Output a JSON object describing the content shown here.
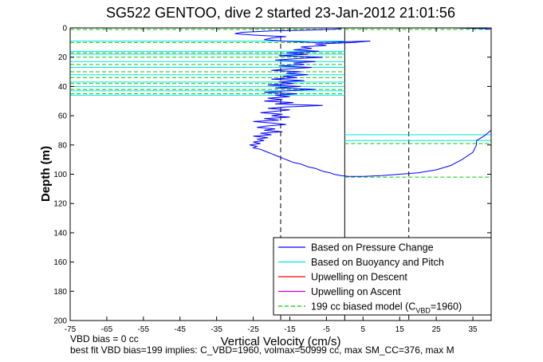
{
  "chart_data": {
    "type": "line",
    "title": "SG522 GENTOO, dive 2 started 23-Jan-2012 21:01:56",
    "xlabel": "Vertical Velocity (cm/s)",
    "ylabel": "Depth (m)",
    "xlim": [
      -75,
      40
    ],
    "ylim": [
      200,
      0
    ],
    "y_reversed": true,
    "grid": false,
    "legend_position": "bottom-right",
    "xticks": [
      "-75",
      "-65",
      "-55",
      "-45",
      "-35",
      "-25",
      "-15",
      "-5",
      "5",
      "15",
      "25",
      "35"
    ],
    "xtick_values": [
      -75,
      -65,
      -55,
      -45,
      -35,
      -25,
      -15,
      -5,
      5,
      15,
      25,
      35
    ],
    "yticks": [
      "0",
      "20",
      "40",
      "60",
      "80",
      "100",
      "120",
      "140",
      "160",
      "180",
      "200"
    ],
    "ytick_values": [
      0,
      20,
      40,
      60,
      80,
      100,
      120,
      140,
      160,
      180,
      200
    ],
    "reference_lines_x": [
      0
    ],
    "reference_lines_x_dashed": [
      -17.5,
      17.5
    ],
    "notes": [
      "VBD bias = 0 cc",
      "best fit VBD bias=199 implies: C_VBD=1960, volmax=50999 cc, max SM_CC=376, max M"
    ],
    "legend": [
      {
        "label": "Based on Pressure Change",
        "color": "#0000ff",
        "style": "solid"
      },
      {
        "label": "Based on Buoyancy and Pitch",
        "color": "#00e6e6",
        "style": "solid"
      },
      {
        "label": "Upwelling on Descent",
        "color": "#ff0000",
        "style": "solid"
      },
      {
        "label": "Upwelling on Ascent",
        "color": "#cc00cc",
        "style": "solid"
      },
      {
        "label_prefix": "199 cc biased model (C",
        "label_sub": "VBD",
        "label_suffix": "=1960)",
        "color": "#00cc00",
        "style": "dashed"
      }
    ],
    "series": [
      {
        "name": "Based on Pressure Change",
        "color": "#0000ff",
        "points": [
          [
            -1,
            0.5
          ],
          [
            -3,
            1
          ],
          [
            -10,
            1.5
          ],
          [
            -20,
            2
          ],
          [
            -28,
            3
          ],
          [
            -30,
            4
          ],
          [
            -24,
            5
          ],
          [
            -16,
            6
          ],
          [
            -20,
            7
          ],
          [
            -22,
            8
          ],
          [
            -17,
            9
          ],
          [
            -8,
            10
          ],
          [
            7,
            9
          ],
          [
            2,
            10
          ],
          [
            -8,
            11
          ],
          [
            -5,
            12
          ],
          [
            -12,
            13
          ],
          [
            -9,
            14
          ],
          [
            -14,
            15
          ],
          [
            -7,
            16
          ],
          [
            -16,
            17
          ],
          [
            -10,
            18
          ],
          [
            -18,
            19
          ],
          [
            -6,
            20
          ],
          [
            -13,
            21
          ],
          [
            -19,
            22
          ],
          [
            -8,
            23
          ],
          [
            -14,
            24
          ],
          [
            -11,
            25
          ],
          [
            -18,
            26
          ],
          [
            -9,
            27
          ],
          [
            -15,
            28
          ],
          [
            -20,
            29
          ],
          [
            -12,
            30
          ],
          [
            -16,
            31
          ],
          [
            -10,
            32
          ],
          [
            -17,
            33
          ],
          [
            -13,
            34
          ],
          [
            -20,
            35
          ],
          [
            -11,
            36
          ],
          [
            -18,
            37
          ],
          [
            -14,
            38
          ],
          [
            -21,
            39
          ],
          [
            -12,
            40
          ],
          [
            -19,
            41
          ],
          [
            -8,
            42
          ],
          [
            -16,
            43
          ],
          [
            -22,
            44
          ],
          [
            -13,
            45
          ],
          [
            -19,
            46
          ],
          [
            -15,
            47
          ],
          [
            -21,
            48
          ],
          [
            -17,
            49
          ],
          [
            -22,
            50
          ],
          [
            -14,
            51
          ],
          [
            -19,
            52
          ],
          [
            -6,
            53
          ],
          [
            -16,
            54
          ],
          [
            -21,
            55
          ],
          [
            -15,
            56
          ],
          [
            -19,
            57
          ],
          [
            -23,
            58
          ],
          [
            -17,
            59
          ],
          [
            -20,
            60
          ],
          [
            -15,
            61
          ],
          [
            -22,
            62
          ],
          [
            -18,
            63
          ],
          [
            -25,
            64
          ],
          [
            -20,
            65
          ],
          [
            -16,
            66
          ],
          [
            -21,
            67
          ],
          [
            -24,
            68
          ],
          [
            -19,
            69
          ],
          [
            -22,
            70
          ],
          [
            -17,
            71
          ],
          [
            -23,
            72
          ],
          [
            -20,
            73
          ],
          [
            -25,
            74
          ],
          [
            -21,
            75
          ],
          [
            -24,
            76
          ],
          [
            -22,
            77
          ],
          [
            -25,
            78
          ],
          [
            -23,
            79
          ],
          [
            -26,
            80
          ],
          [
            -24,
            81
          ],
          [
            -25,
            82
          ],
          [
            -23,
            83
          ],
          [
            -22,
            84
          ],
          [
            -21,
            85
          ],
          [
            -20,
            86
          ],
          [
            -19,
            87
          ],
          [
            -18,
            88
          ],
          [
            -17,
            89
          ],
          [
            -16,
            90
          ],
          [
            -15,
            91
          ],
          [
            -14,
            92
          ],
          [
            -12,
            93
          ],
          [
            -11,
            94
          ],
          [
            -10,
            95
          ],
          [
            -8,
            96
          ],
          [
            -7,
            97
          ],
          [
            -6,
            98
          ],
          [
            -4,
            99
          ],
          [
            -3,
            100
          ],
          [
            -1,
            101
          ],
          [
            1,
            101.5
          ],
          [
            5,
            101.5
          ],
          [
            10,
            101
          ],
          [
            15,
            100
          ],
          [
            20,
            99
          ],
          [
            25,
            97
          ],
          [
            29,
            94
          ],
          [
            32,
            90
          ],
          [
            35,
            85
          ],
          [
            36,
            80
          ],
          [
            36,
            77
          ],
          [
            38,
            74
          ],
          [
            40,
            70
          ]
        ]
      },
      {
        "name": "Based on Pressure Change (surface)",
        "color": "#0000ff",
        "points": [
          [
            30,
            0
          ],
          [
            33,
            0.2
          ],
          [
            36,
            0.3
          ],
          [
            38,
            0.5
          ],
          [
            40,
            0.8
          ]
        ]
      }
    ],
    "buoyancy_segments": [
      {
        "x": [
          -75,
          0
        ],
        "y": 0
      },
      {
        "x": [
          -75,
          0
        ],
        "y": 9
      },
      {
        "x": [
          -75,
          0
        ],
        "y": 16
      },
      {
        "x": [
          -75,
          0
        ],
        "y": 18
      },
      {
        "x": [
          -75,
          0
        ],
        "y": 23
      },
      {
        "x": [
          -75,
          0
        ],
        "y": 27
      },
      {
        "x": [
          -75,
          0
        ],
        "y": 32
      },
      {
        "x": [
          -75,
          0
        ],
        "y": 37
      },
      {
        "x": [
          -75,
          0
        ],
        "y": 40
      },
      {
        "x": [
          -75,
          0
        ],
        "y": 43
      },
      {
        "x": [
          -75,
          0
        ],
        "y": 46
      },
      {
        "x": [
          0,
          40
        ],
        "y": 73
      },
      {
        "x": [
          0,
          40
        ],
        "y": 77
      }
    ],
    "model_segments": [
      {
        "x": [
          -75,
          0
        ],
        "y": 1
      },
      {
        "x": [
          -75,
          0
        ],
        "y": 10
      },
      {
        "x": [
          -75,
          0
        ],
        "y": 17
      },
      {
        "x": [
          -75,
          0
        ],
        "y": 20
      },
      {
        "x": [
          -75,
          0
        ],
        "y": 25
      },
      {
        "x": [
          -75,
          0
        ],
        "y": 30
      },
      {
        "x": [
          -75,
          0
        ],
        "y": 34
      },
      {
        "x": [
          -75,
          0
        ],
        "y": 38
      },
      {
        "x": [
          -75,
          0
        ],
        "y": 42
      },
      {
        "x": [
          -75,
          0
        ],
        "y": 45
      },
      {
        "x": [
          0,
          40
        ],
        "y": 1
      },
      {
        "x": [
          0,
          40
        ],
        "y": 79
      },
      {
        "x": [
          0,
          40
        ],
        "y": 102
      }
    ]
  }
}
